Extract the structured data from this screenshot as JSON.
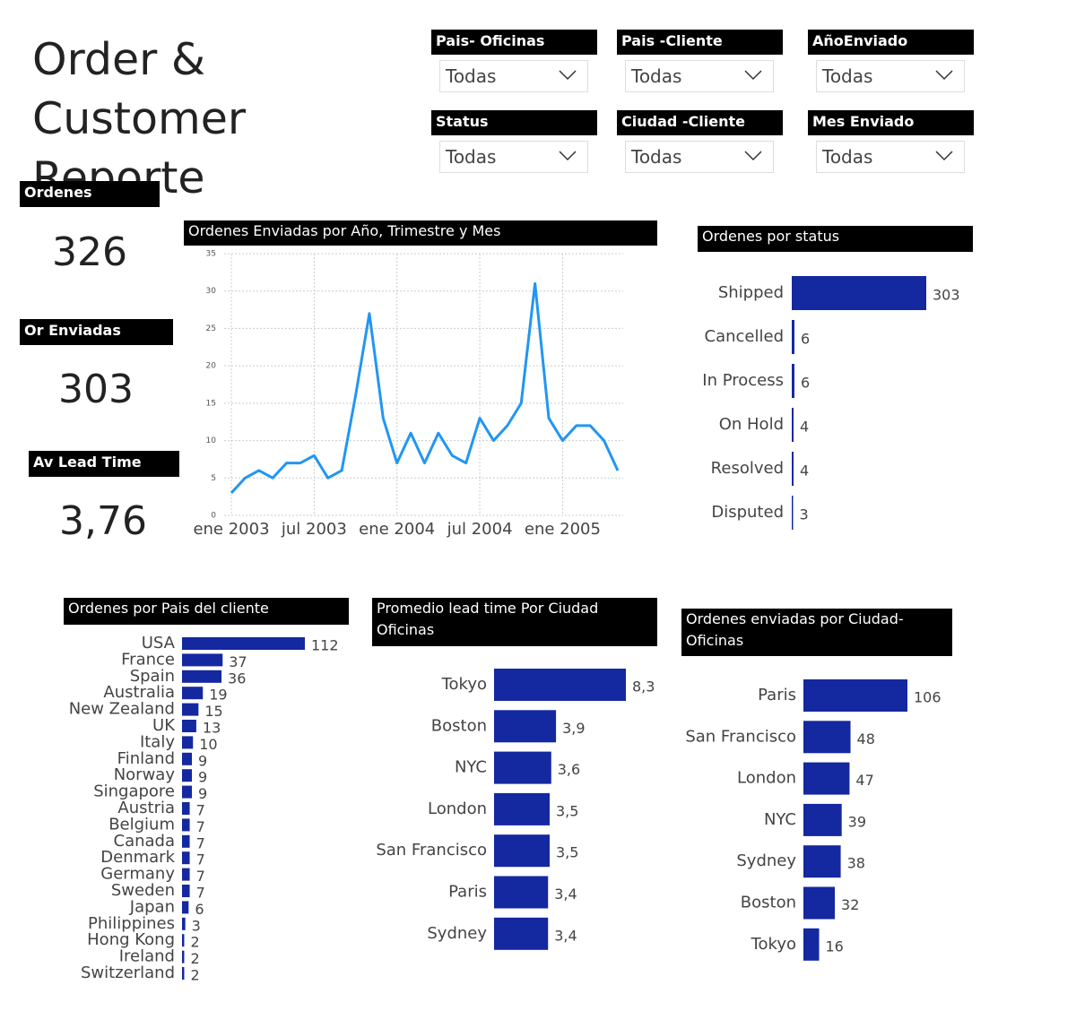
{
  "title": "Order & Customer Reporte",
  "filters": [
    {
      "label": "Pais- Oficinas",
      "value": "Todas"
    },
    {
      "label": "Pais -Cliente",
      "value": "Todas"
    },
    {
      "label": "AñoEnviado",
      "value": "Todas"
    },
    {
      "label": "Status",
      "value": "Todas"
    },
    {
      "label": "Ciudad -Cliente",
      "value": "Todas"
    },
    {
      "label": "Mes Enviado",
      "value": "Todas"
    }
  ],
  "cards": [
    {
      "label": "Ordenes",
      "value": 326
    },
    {
      "label": "Or Enviadas",
      "value": 303
    },
    {
      "label": "Av Lead Time",
      "value": "3,76"
    }
  ],
  "chart_data": [
    {
      "type": "line",
      "title": "Ordenes Enviadas por Año, Trimestre y Mes",
      "color": "#2196f3",
      "x": [
        "2003-01",
        "2003-02",
        "2003-03",
        "2003-04",
        "2003-05",
        "2003-06",
        "2003-07",
        "2003-08",
        "2003-09",
        "2003-10",
        "2003-11",
        "2003-12",
        "2004-01",
        "2004-02",
        "2004-03",
        "2004-04",
        "2004-05",
        "2004-06",
        "2004-07",
        "2004-08",
        "2004-09",
        "2004-10",
        "2004-11",
        "2004-12",
        "2005-01",
        "2005-02",
        "2005-03",
        "2005-04",
        "2005-05"
      ],
      "values": [
        3,
        5,
        6,
        5,
        7,
        7,
        8,
        5,
        6,
        16,
        27,
        13,
        7,
        11,
        7,
        11,
        8,
        7,
        13,
        10,
        12,
        15,
        31,
        13,
        10,
        12,
        12,
        10,
        6
      ],
      "xlim": [
        "2003-01",
        "2005-05"
      ],
      "xticks": [
        {
          "value": "2003-01",
          "label": "ene 2003"
        },
        {
          "value": "2003-07",
          "label": "jul 2003"
        },
        {
          "value": "2004-01",
          "label": "ene 2004"
        },
        {
          "value": "2004-07",
          "label": "jul 2004"
        },
        {
          "value": "2005-01",
          "label": "ene 2005"
        }
      ],
      "ylim": [
        0,
        35
      ],
      "yticks": [
        0,
        5,
        10,
        15,
        20,
        25,
        30,
        35
      ],
      "grid": true
    },
    {
      "type": "bar",
      "orientation": "horizontal",
      "title": "Ordenes por status",
      "color": "#1428a0",
      "categories": [
        "Shipped",
        "Cancelled",
        "In Process",
        "On Hold",
        "Resolved",
        "Disputed"
      ],
      "values": [
        303,
        6,
        6,
        4,
        4,
        3
      ]
    },
    {
      "type": "bar",
      "orientation": "horizontal",
      "title": "Ordenes por Pais del cliente",
      "color": "#1428a0",
      "categories": [
        "USA",
        "France",
        "Spain",
        "Australia",
        "New Zealand",
        "UK",
        "Italy",
        "Finland",
        "Norway",
        "Singapore",
        "Austria",
        "Belgium",
        "Canada",
        "Denmark",
        "Germany",
        "Sweden",
        "Japan",
        "Philippines",
        "Hong Kong",
        "Ireland",
        "Switzerland"
      ],
      "values": [
        112,
        37,
        36,
        19,
        15,
        13,
        10,
        9,
        9,
        9,
        7,
        7,
        7,
        7,
        7,
        7,
        6,
        3,
        2,
        2,
        2
      ]
    },
    {
      "type": "bar",
      "orientation": "horizontal",
      "title": "Promedio lead time Por Ciudad Oficinas",
      "color": "#1428a0",
      "categories": [
        "Tokyo",
        "Boston",
        "NYC",
        "London",
        "San Francisco",
        "Paris",
        "Sydney"
      ],
      "values": [
        8.3,
        3.9,
        3.6,
        3.5,
        3.5,
        3.4,
        3.4
      ],
      "value_labels": [
        "8,3",
        "3,9",
        "3,6",
        "3,5",
        "3,5",
        "3,4",
        "3,4"
      ]
    },
    {
      "type": "bar",
      "orientation": "horizontal",
      "title": "Ordenes enviadas por Ciudad-Oficinas",
      "color": "#1428a0",
      "categories": [
        "Paris",
        "San Francisco",
        "London",
        "NYC",
        "Sydney",
        "Boston",
        "Tokyo"
      ],
      "values": [
        106,
        48,
        47,
        39,
        38,
        32,
        16
      ]
    }
  ]
}
